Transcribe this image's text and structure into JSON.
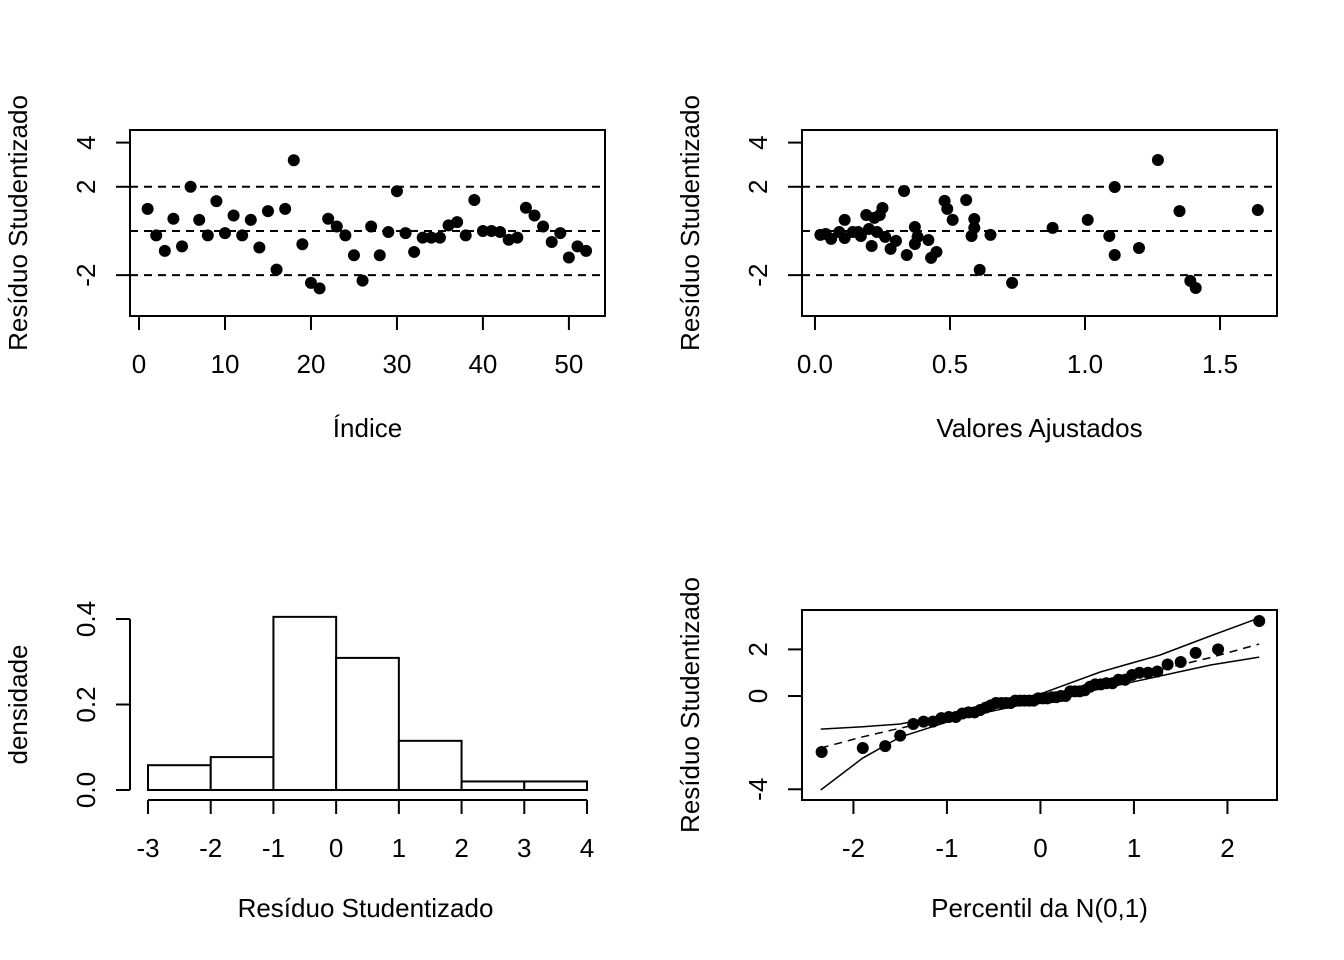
{
  "chart_data": [
    {
      "type": "scatter",
      "xlabel": "Índice",
      "ylabel": "Resíduo Studentizado",
      "color": "#000000",
      "x": [
        1,
        2,
        3,
        4,
        5,
        6,
        7,
        8,
        9,
        10,
        11,
        12,
        13,
        14,
        15,
        16,
        17,
        18,
        19,
        20,
        21,
        22,
        23,
        24,
        25,
        26,
        27,
        28,
        29,
        30,
        31,
        32,
        33,
        34,
        35,
        36,
        37,
        38,
        39,
        40,
        41,
        42,
        43,
        44,
        45,
        46,
        47,
        48,
        49,
        50,
        51,
        52
      ],
      "values": [
        1.0,
        -0.2,
        -0.9,
        0.55,
        -0.7,
        2.0,
        0.5,
        -0.2,
        1.35,
        -0.1,
        0.7,
        -0.2,
        0.5,
        -0.75,
        0.9,
        -1.75,
        1.0,
        3.2,
        -0.6,
        -2.35,
        -2.6,
        0.55,
        0.2,
        -0.2,
        -1.1,
        -2.25,
        0.2,
        -1.1,
        -0.05,
        1.8,
        -0.1,
        -0.95,
        -0.3,
        -0.3,
        -0.3,
        0.25,
        0.4,
        -0.2,
        1.4,
        0,
        0,
        -0.05,
        -0.4,
        -0.3,
        1.05,
        0.7,
        0.2,
        -0.5,
        -0.1,
        -1.2,
        -0.7,
        -0.9
      ],
      "xlim": [
        -1.05,
        54.2
      ],
      "ylim": [
        -3.85,
        4.57
      ],
      "xticks": [
        0,
        10,
        20,
        30,
        40,
        50
      ],
      "yticks": [
        -2,
        2,
        4
      ],
      "hlines": [
        -2,
        0,
        2
      ]
    },
    {
      "type": "scatter",
      "xlabel": "Valores Ajustados",
      "ylabel": "Resíduo Studentizado",
      "color": "#000000",
      "x": [
        0.02,
        0.04,
        0.06,
        0.09,
        0.11,
        0.11,
        0.14,
        0.16,
        0.17,
        0.19,
        0.2,
        0.21,
        0.22,
        0.23,
        0.24,
        0.25,
        0.26,
        0.28,
        0.3,
        0.33,
        0.34,
        0.37,
        0.37,
        0.38,
        0.42,
        0.43,
        0.45,
        0.48,
        0.49,
        0.51,
        0.56,
        0.58,
        0.59,
        0.59,
        0.61,
        0.65,
        0.73,
        0.88,
        1.01,
        1.09,
        1.11,
        1.11,
        1.2,
        1.27,
        1.35,
        1.39,
        1.41,
        1.64
      ],
      "values": [
        -0.18,
        -0.14,
        -0.36,
        -0.05,
        0.5,
        -0.32,
        -0.05,
        -0.05,
        -0.23,
        0.72,
        0.09,
        -0.68,
        0.59,
        -0.05,
        0.72,
        1.04,
        -0.27,
        -0.81,
        -0.45,
        1.81,
        -1.09,
        0.18,
        -0.59,
        -0.27,
        -0.41,
        -1.22,
        -0.95,
        1.36,
        1.0,
        0.5,
        1.4,
        -0.23,
        0.54,
        0.14,
        -1.76,
        -0.18,
        -2.35,
        0.14,
        0.5,
        -0.23,
        -1.09,
        1.99,
        -0.77,
        3.21,
        0.9,
        -2.26,
        -2.58,
        0.95
      ],
      "xlim": [
        -0.048,
        1.711
      ],
      "ylim": [
        -3.85,
        4.57
      ],
      "xticks": [
        {
          "value": 0,
          "label": "0.0"
        },
        0.5,
        {
          "value": 1,
          "label": "1.0"
        },
        1.5
      ],
      "yticks": [
        -2,
        2,
        4
      ],
      "hlines": [
        -2,
        0,
        2
      ]
    },
    {
      "type": "histogram",
      "xlabel": "Resíduo Studentizado",
      "ylabel": "densidade",
      "bins": [
        -3,
        -2,
        -1,
        0,
        1,
        2,
        3,
        4
      ],
      "values": [
        0.058,
        0.077,
        0.405,
        0.309,
        0.115,
        0.02,
        0.02
      ],
      "xlim": [
        -3,
        4
      ],
      "ylim": [
        0,
        0.4
      ],
      "xticks": [
        -3,
        -2,
        -1,
        0,
        1,
        2,
        3,
        4
      ],
      "yticks": [
        {
          "value": 0,
          "label": "0.0"
        },
        0.2,
        0.4
      ]
    },
    {
      "type": "qq",
      "xlabel": "Percentil da N(0,1)",
      "ylabel": "Resíduo Studentizado",
      "color": "#000000",
      "x": [
        -2.34,
        -1.9,
        -1.66,
        -1.5,
        -1.36,
        -1.25,
        -1.15,
        -1.06,
        -0.98,
        -0.905,
        -0.835,
        -0.77,
        -0.705,
        -0.645,
        -0.586,
        -0.53,
        -0.475,
        -0.42,
        -0.37,
        -0.319,
        -0.269,
        -0.219,
        -0.17,
        -0.121,
        -0.072,
        -0.024,
        0.024,
        0.072,
        0.121,
        0.17,
        0.219,
        0.269,
        0.319,
        0.37,
        0.42,
        0.475,
        0.53,
        0.586,
        0.645,
        0.705,
        0.77,
        0.835,
        0.905,
        0.98,
        1.06,
        1.15,
        1.25,
        1.36,
        1.5,
        1.66,
        1.9,
        2.34
      ],
      "values": [
        -2.4,
        -2.23,
        -2.15,
        -1.7,
        -1.2,
        -1.1,
        -1.1,
        -0.95,
        -0.9,
        -0.9,
        -0.75,
        -0.7,
        -0.7,
        -0.6,
        -0.5,
        -0.4,
        -0.3,
        -0.3,
        -0.3,
        -0.3,
        -0.2,
        -0.2,
        -0.2,
        -0.2,
        -0.2,
        -0.1,
        -0.1,
        -0.1,
        -0.05,
        -0.05,
        0,
        0,
        0.2,
        0.2,
        0.2,
        0.25,
        0.4,
        0.5,
        0.5,
        0.55,
        0.55,
        0.7,
        0.7,
        0.9,
        1.0,
        1.0,
        1.05,
        1.35,
        1.46,
        1.85,
        2.0,
        3.22
      ],
      "envelope": {
        "x": [
          -2.35,
          -1.9,
          -1.5,
          -0.86,
          0,
          0.64,
          1.28,
          1.82,
          2.34
        ],
        "lower": [
          -4.03,
          -2.66,
          -1.76,
          -0.94,
          -0.21,
          0.3,
          0.86,
          1.33,
          1.67
        ],
        "median": [
          -2.23,
          -1.75,
          -1.38,
          -0.8,
          -0.04,
          0.58,
          1.13,
          1.65,
          2.23
        ],
        "upper": [
          -1.42,
          -1.32,
          -1.2,
          -0.69,
          0.09,
          1.03,
          1.76,
          2.58,
          3.35
        ]
      },
      "xlim": [
        -2.55,
        2.53
      ],
      "ylim": [
        -4.46,
        3.69
      ],
      "xticks": [
        -2,
        -1,
        0,
        1,
        2
      ],
      "yticks": [
        -4,
        0,
        2
      ]
    }
  ]
}
